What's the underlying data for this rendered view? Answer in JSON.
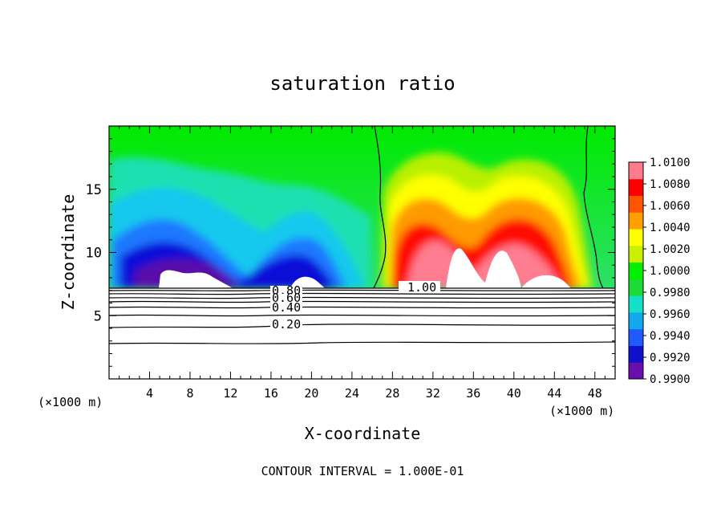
{
  "chart_data": {
    "type": "heatmap",
    "title": "saturation ratio",
    "xlabel": "X-coordinate",
    "ylabel": "Z-coordinate",
    "x_units": "(×1000 m)",
    "footer": "CONTOUR INTERVAL = 1.000E-01",
    "xlim": [
      0,
      50
    ],
    "ylim": [
      0,
      20
    ],
    "x_ticks": [
      4,
      8,
      12,
      16,
      20,
      24,
      28,
      32,
      36,
      40,
      44,
      48
    ],
    "y_ticks": [
      5,
      10,
      15
    ],
    "colorbar": {
      "levels": [
        0.99,
        0.992,
        0.994,
        0.996,
        0.998,
        1.0,
        1.002,
        1.004,
        1.006,
        1.008,
        1.01
      ],
      "labels": [
        "1.0100",
        "1.0080",
        "1.0060",
        "1.0040",
        "1.0020",
        "1.0000",
        "0.9980",
        "0.9960",
        "0.9940",
        "0.9920",
        "0.9900"
      ],
      "colors": [
        "#6a0dad",
        "#1010cc",
        "#1e5aff",
        "#12a8ee",
        "#12e0c8",
        "#1bdc36",
        "#00f000",
        "#c8f000",
        "#ffff00",
        "#ffa000",
        "#ff5500",
        "#ff0000",
        "#ff7a8c"
      ]
    },
    "contour_labels": [
      "0.20",
      "0.40",
      "0.60",
      "0.80",
      "1.00"
    ],
    "contour_levels": [
      0.2,
      0.4,
      0.6,
      0.8,
      1.0
    ]
  }
}
